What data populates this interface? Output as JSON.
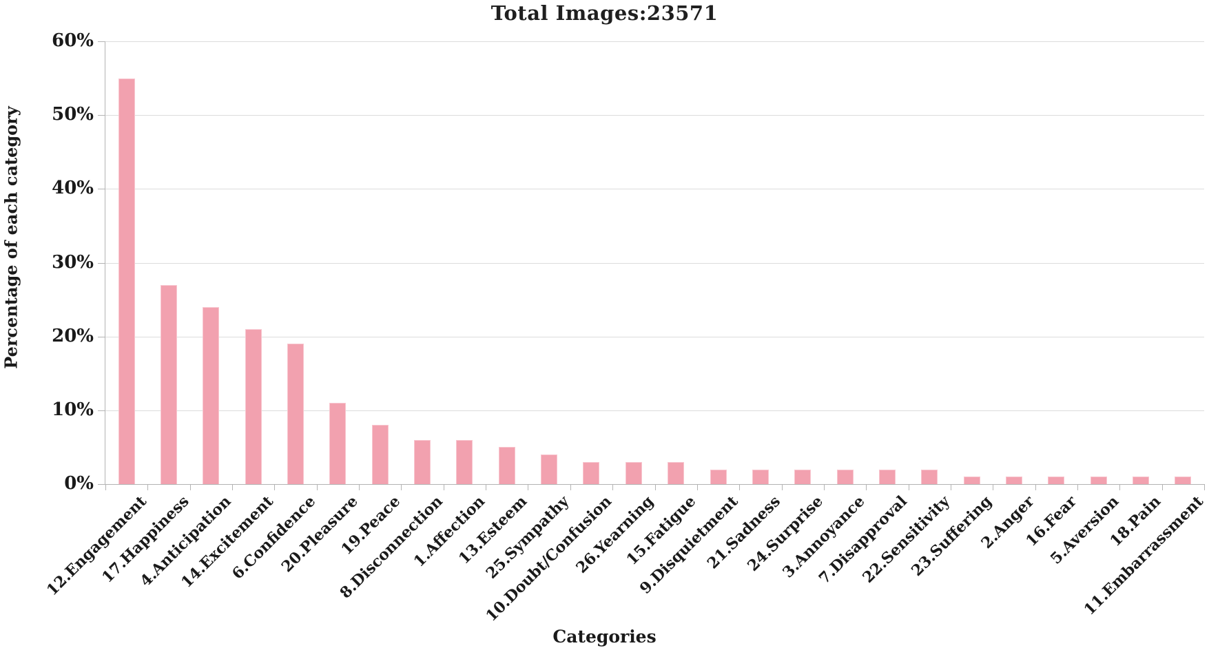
{
  "chart_data": {
    "type": "bar",
    "title": "Total Images:23571",
    "total_images": 23571,
    "xlabel": "Categories",
    "ylabel": "Percentage of each category",
    "categories": [
      "12.Engagement",
      "17.Happiness",
      "4.Anticipation",
      "14.Excitement",
      "6.Confidence",
      "20.Pleasure",
      "19.Peace",
      "8.Disconnection",
      "1.Affection",
      "13.Esteem",
      "25.Sympathy",
      "10.Doubt/Confusion",
      "26.Yearning",
      "15.Fatigue",
      "9.Disquietment",
      "21.Sadness",
      "24.Surprise",
      "3.Annoyance",
      "7.Disapproval",
      "22.Sensitivity",
      "23.Suffering",
      "2.Anger",
      "16.Fear",
      "5.Aversion",
      "18.Pain",
      "11.Embarrassment"
    ],
    "values": [
      55,
      27,
      24,
      21,
      19,
      11,
      8,
      6,
      6,
      5,
      4,
      3,
      3,
      3,
      2,
      2,
      2,
      2,
      2,
      2,
      1,
      1,
      1,
      1,
      1,
      1
    ],
    "unit": "%",
    "ylim": [
      0,
      60
    ],
    "ytick_step": 10,
    "ytick_labels": [
      "0%",
      "10%",
      "20%",
      "30%",
      "40%",
      "50%",
      "60%"
    ],
    "grid": true,
    "legend": "none",
    "bar_color": "#F2A1AF"
  },
  "colors": {
    "bar_fill": "#F2A1AF",
    "bar_edge": "#F8C6CF",
    "gridline": "#DCDCDC",
    "axis": "#B3B3B3",
    "text": "#1A1A1A",
    "background": "#FFFFFF"
  }
}
